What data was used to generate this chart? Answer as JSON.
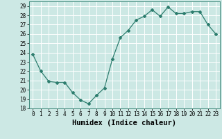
{
  "x": [
    0,
    1,
    2,
    3,
    4,
    5,
    6,
    7,
    8,
    9,
    10,
    11,
    12,
    13,
    14,
    15,
    16,
    17,
    18,
    19,
    20,
    21,
    22,
    23
  ],
  "y": [
    23.8,
    22.0,
    20.9,
    20.8,
    20.8,
    19.7,
    18.9,
    18.5,
    19.4,
    20.2,
    23.3,
    25.6,
    26.4,
    27.5,
    27.9,
    28.6,
    27.9,
    28.9,
    28.2,
    28.2,
    28.4,
    28.4,
    27.0,
    26.0
  ],
  "xlabel": "Humidex (Indice chaleur)",
  "ylim": [
    18,
    29.5
  ],
  "yticks": [
    18,
    19,
    20,
    21,
    22,
    23,
    24,
    25,
    26,
    27,
    28,
    29
  ],
  "xlim": [
    -0.5,
    23.5
  ],
  "xticks": [
    0,
    1,
    2,
    3,
    4,
    5,
    6,
    7,
    8,
    9,
    10,
    11,
    12,
    13,
    14,
    15,
    16,
    17,
    18,
    19,
    20,
    21,
    22,
    23
  ],
  "line_color": "#2d7d6e",
  "marker": "D",
  "marker_size": 2.0,
  "bg_color": "#cce8e4",
  "grid_color": "#ffffff",
  "tick_fontsize": 5.5,
  "xlabel_fontsize": 7.5,
  "linewidth": 0.9
}
